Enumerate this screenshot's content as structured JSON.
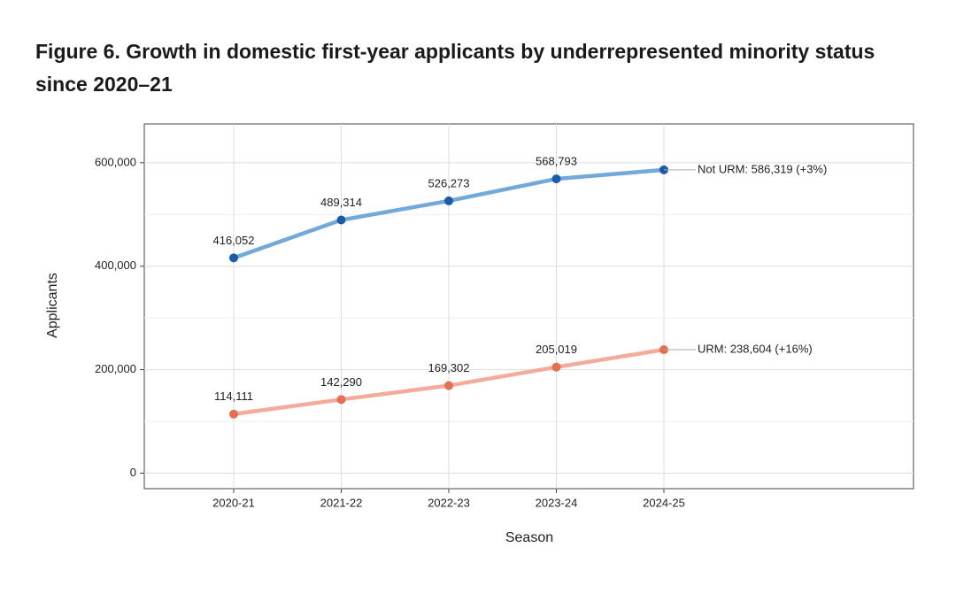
{
  "chart_data": {
    "type": "line",
    "title": "Figure 6. Growth in domestic first-year applicants by underrepresented minority status since 2020–21",
    "xlabel": "Season",
    "ylabel": "Applicants",
    "categories": [
      "2020-21",
      "2021-22",
      "2022-23",
      "2023-24",
      "2024-25"
    ],
    "series": [
      {
        "name": "Not URM",
        "color": "#72a9d8",
        "marker_color": "#1b5ca8",
        "values": [
          416052,
          489314,
          526273,
          568793,
          586319
        ],
        "value_labels": [
          "416,052",
          "489,314",
          "526,273",
          "568,793",
          null
        ],
        "end_label": "Not URM: 586,319 (+3%)"
      },
      {
        "name": "URM",
        "color": "#f4ab9b",
        "marker_color": "#e46f55",
        "values": [
          114111,
          142290,
          169302,
          205019,
          238604
        ],
        "value_labels": [
          "114,111",
          "142,290",
          "169,302",
          "205,019",
          null
        ],
        "end_label": "URM: 238,604 (+16%)"
      }
    ],
    "ylim": [
      -30000,
      675000
    ],
    "yticks": [
      0,
      {
        "value": 200000,
        "label": "200,000"
      },
      {
        "value": 400000,
        "label": "400,000"
      },
      {
        "value": 600000,
        "label": "600,000"
      }
    ],
    "minor_yticks": [
      100000,
      300000,
      500000
    ],
    "grid": true
  }
}
